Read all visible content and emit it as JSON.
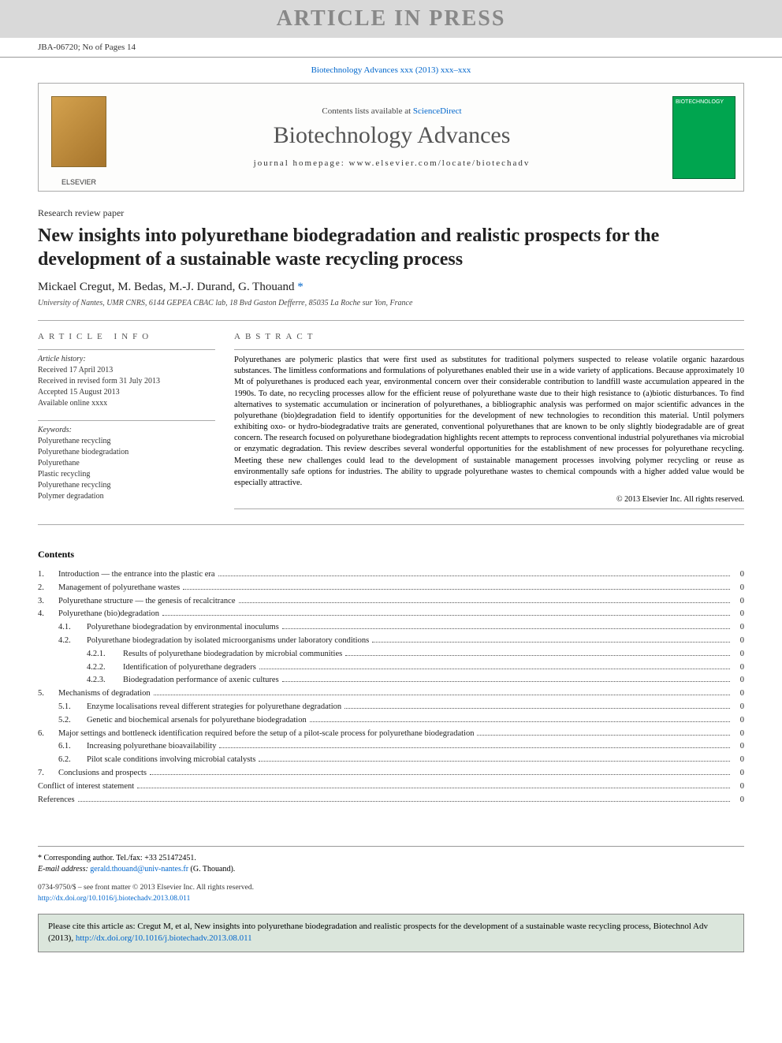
{
  "banner": "ARTICLE IN PRESS",
  "jba": "JBA-06720; No of Pages 14",
  "journal_ref": "Biotechnology Advances xxx (2013) xxx–xxx",
  "header": {
    "contents_prefix": "Contents lists available at ",
    "contents_link": "ScienceDirect",
    "journal_title": "Biotechnology Advances",
    "homepage": "journal homepage: www.elsevier.com/locate/biotechadv",
    "left_logo_label": "ELSEVIER",
    "right_logo_label": "BIOTECHNOLOGY"
  },
  "section_label": "Research review paper",
  "title": "New insights into polyurethane biodegradation and realistic prospects for the development of a sustainable waste recycling process",
  "authors": "Mickael Cregut, M. Bedas, M.-J. Durand, G. Thouand",
  "corr_mark": " *",
  "affiliation": "University of Nantes, UMR CNRS, 6144 GEPEA CBAC lab, 18 Bvd Gaston Defferre, 85035 La Roche sur Yon, France",
  "info": {
    "head": "ARTICLE INFO",
    "history_head": "Article history:",
    "history": [
      "Received 17 April 2013",
      "Received in revised form 31 July 2013",
      "Accepted 15 August 2013",
      "Available online xxxx"
    ],
    "keywords_head": "Keywords:",
    "keywords": [
      "Polyurethane recycling",
      "Polyurethane biodegradation",
      "Polyurethane",
      "Plastic recycling",
      "Polyurethane recycling",
      "Polymer degradation"
    ]
  },
  "abstract": {
    "head": "ABSTRACT",
    "text": "Polyurethanes are polymeric plastics that were first used as substitutes for traditional polymers suspected to release volatile organic hazardous substances. The limitless conformations and formulations of polyurethanes enabled their use in a wide variety of applications. Because approximately 10 Mt of polyurethanes is produced each year, environmental concern over their considerable contribution to landfill waste accumulation appeared in the 1990s. To date, no recycling processes allow for the efficient reuse of polyurethane waste due to their high resistance to (a)biotic disturbances. To find alternatives to systematic accumulation or incineration of polyurethanes, a bibliographic analysis was performed on major scientific advances in the polyurethane (bio)degradation field to identify opportunities for the development of new technologies to recondition this material. Until polymers exhibiting oxo- or hydro-biodegradative traits are generated, conventional polyurethanes that are known to be only slightly biodegradable are of great concern. The research focused on polyurethane biodegradation highlights recent attempts to reprocess conventional industrial polyurethanes via microbial or enzymatic degradation. This review describes several wonderful opportunities for the establishment of new processes for polyurethane recycling. Meeting these new challenges could lead to the development of sustainable management processes involving polymer recycling or reuse as environmentally safe options for industries. The ability to upgrade polyurethane wastes to chemical compounds with a higher added value would be especially attractive.",
    "copyright": "© 2013 Elsevier Inc. All rights reserved."
  },
  "contents_head": "Contents",
  "toc": [
    {
      "n": "1.",
      "t": "Introduction — the entrance into the plastic era",
      "p": "0",
      "lvl": 0
    },
    {
      "n": "2.",
      "t": "Management of polyurethane wastes",
      "p": "0",
      "lvl": 0
    },
    {
      "n": "3.",
      "t": "Polyurethane structure — the genesis of recalcitrance",
      "p": "0",
      "lvl": 0
    },
    {
      "n": "4.",
      "t": "Polyurethane (bio)degradation",
      "p": "0",
      "lvl": 0
    },
    {
      "n": "4.1.",
      "t": "Polyurethane biodegradation by environmental inoculums",
      "p": "0",
      "lvl": 1
    },
    {
      "n": "4.2.",
      "t": "Polyurethane biodegradation by isolated microorganisms under laboratory conditions",
      "p": "0",
      "lvl": 1
    },
    {
      "n": "4.2.1.",
      "t": "Results of polyurethane biodegradation by microbial communities",
      "p": "0",
      "lvl": 2
    },
    {
      "n": "4.2.2.",
      "t": "Identification of polyurethane degraders",
      "p": "0",
      "lvl": 2
    },
    {
      "n": "4.2.3.",
      "t": "Biodegradation performance of axenic cultures",
      "p": "0",
      "lvl": 2
    },
    {
      "n": "5.",
      "t": "Mechanisms of degradation",
      "p": "0",
      "lvl": 0
    },
    {
      "n": "5.1.",
      "t": "Enzyme localisations reveal different strategies for polyurethane degradation",
      "p": "0",
      "lvl": 1
    },
    {
      "n": "5.2.",
      "t": "Genetic and biochemical arsenals for polyurethane biodegradation",
      "p": "0",
      "lvl": 1
    },
    {
      "n": "6.",
      "t": "Major settings and bottleneck identification required before the setup of a pilot-scale process for polyurethane biodegradation",
      "p": "0",
      "lvl": 0
    },
    {
      "n": "6.1.",
      "t": "Increasing polyurethane bioavailability",
      "p": "0",
      "lvl": 1
    },
    {
      "n": "6.2.",
      "t": "Pilot scale conditions involving microbial catalysts",
      "p": "0",
      "lvl": 1
    },
    {
      "n": "7.",
      "t": "Conclusions and prospects",
      "p": "0",
      "lvl": 0
    },
    {
      "n": "",
      "t": "Conflict of interest statement",
      "p": "0",
      "lvl": -1
    },
    {
      "n": "",
      "t": "References",
      "p": "0",
      "lvl": -1
    }
  ],
  "footer": {
    "corr": "* Corresponding author. Tel./fax: +33 251472451.",
    "email_label": "E-mail address: ",
    "email": "gerald.thouand@univ-nantes.fr",
    "email_suffix": " (G. Thouand).",
    "front1": "0734-9750/$ – see front matter © 2013 Elsevier Inc. All rights reserved.",
    "doi": "http://dx.doi.org/10.1016/j.biotechadv.2013.08.011",
    "cite": "Please cite this article as: Cregut M, et al, New insights into polyurethane biodegradation and realistic prospects for the development of a sustainable waste recycling process, Biotechnol Adv (2013), ",
    "cite_doi": "http://dx.doi.org/10.1016/j.biotechadv.2013.08.011"
  },
  "colors": {
    "banner_bg": "#d9d9d9",
    "banner_fg": "#888888",
    "link": "#0066cc",
    "cite_bg": "#dbe6dc",
    "elsevier_logo": "#d4a24e",
    "journal_cover": "#00a54f"
  }
}
